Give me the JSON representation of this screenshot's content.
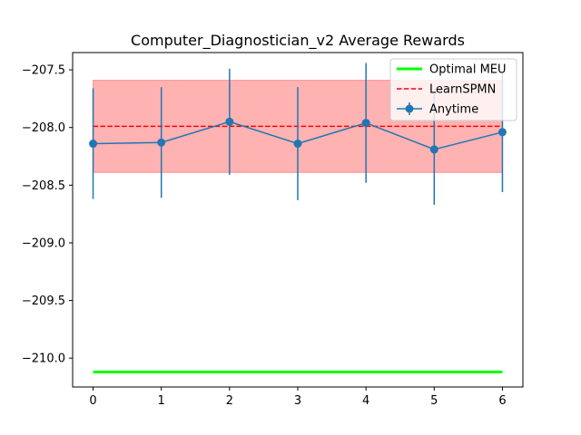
{
  "chart_data": {
    "type": "line",
    "title": "Computer_Diagnostician_v2 Average Rewards",
    "xlabel": "",
    "ylabel": "",
    "xlim": [
      -0.3,
      6.3
    ],
    "ylim": [
      -210.25,
      -207.35
    ],
    "x_ticks": [
      0,
      1,
      2,
      3,
      4,
      5,
      6
    ],
    "y_ticks": [
      -207.5,
      -208.0,
      -208.5,
      -209.0,
      -209.5,
      -210.0
    ],
    "y_tick_labels": [
      "−207.5",
      "−208.0",
      "−208.5",
      "−209.0",
      "−209.5",
      "−210.0"
    ],
    "grid": false,
    "legend_position": "top-right",
    "series": [
      {
        "name": "Optimal MEU",
        "style": "solid-line",
        "color": "#00ff00",
        "x": [
          0,
          6
        ],
        "values": [
          -210.12,
          -210.12
        ]
      },
      {
        "name": "LearnSPMN",
        "style": "dashed-line",
        "color": "#ff0000",
        "x": [
          0,
          6
        ],
        "values": [
          -207.99,
          -207.99
        ],
        "band": [
          -208.39,
          -207.59
        ],
        "band_color": "#ff0000"
      },
      {
        "name": "Anytime",
        "style": "line-with-markers-and-errorbars",
        "color": "#1f77b4",
        "x": [
          0,
          1,
          2,
          3,
          4,
          5,
          6
        ],
        "values": [
          -208.14,
          -208.13,
          -207.95,
          -208.14,
          -207.96,
          -208.19,
          -208.04
        ],
        "error": [
          0.48,
          0.48,
          0.46,
          0.49,
          0.52,
          0.48,
          0.52
        ]
      }
    ]
  }
}
